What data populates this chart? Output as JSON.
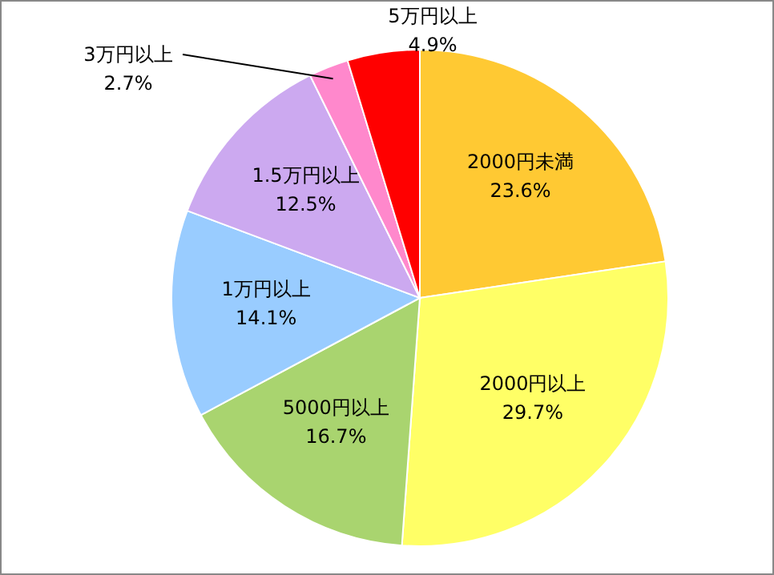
{
  "chart_data": {
    "type": "pie",
    "categories": [
      "2000円未満",
      "2000円以上",
      "5000円以上",
      "1万円以上",
      "1.5万円以上",
      "3万円以上",
      "5万円以上"
    ],
    "values": [
      23.6,
      29.7,
      16.7,
      14.1,
      12.5,
      2.7,
      4.9
    ],
    "colors": [
      "#ffc933",
      "#ffff66",
      "#a9d46f",
      "#99ccff",
      "#cca9f0",
      "#ff88cc",
      "#ff0000"
    ],
    "value_labels": [
      "23.6%",
      "29.7%",
      "16.7%",
      "14.1%",
      "12.5%",
      "2.7%",
      "4.9%"
    ]
  }
}
